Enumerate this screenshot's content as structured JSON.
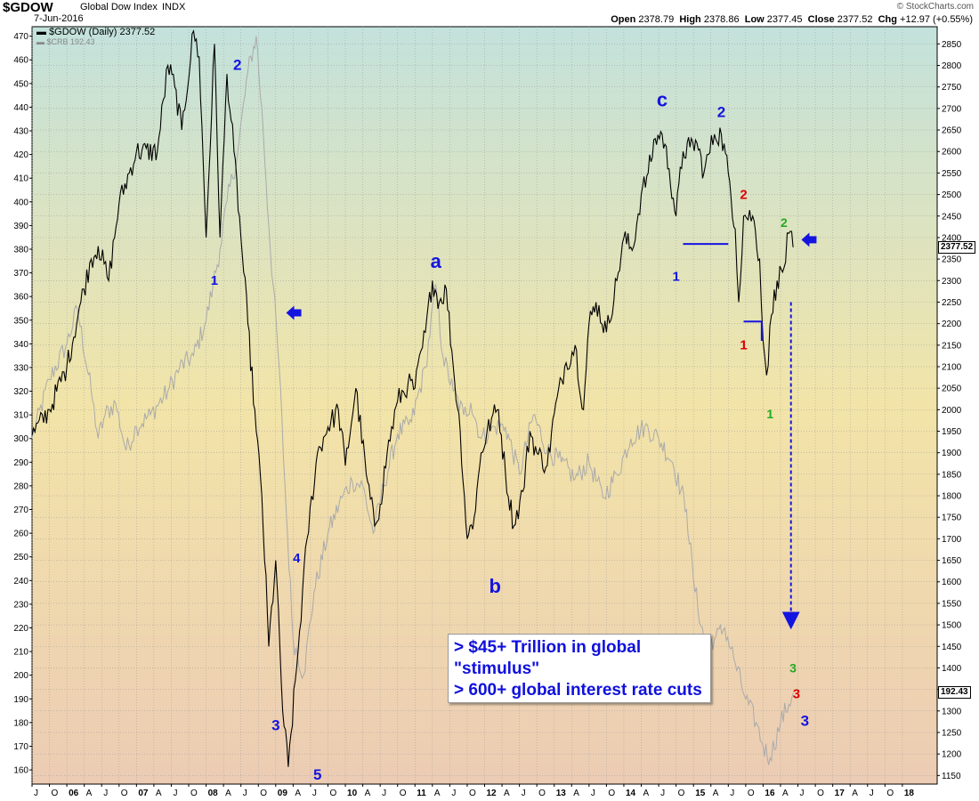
{
  "header": {
    "symbol": "$GDOW",
    "description": "Global Dow Index",
    "exchange": "INDX",
    "date": "7-Jun-2016",
    "logo": "© StockCharts.com",
    "open_label": "Open",
    "open": "2378.79",
    "high_label": "High",
    "high": "2378.86",
    "low_label": "Low",
    "low": "2377.45",
    "close_label": "Close",
    "close": "2377.52",
    "chg_label": "Chg",
    "chg": "+12.97 (+0.55%)"
  },
  "legend": {
    "main": "$GDOW (Daily) 2377.52",
    "overlay": "$CRB 192.43"
  },
  "tags": {
    "gdow_last": "2377.52",
    "crb_last": "192.43"
  },
  "note": {
    "line1": "> $45+ Trillion in global",
    "line2": "\"stimulus\"",
    "line3": "> 600+ global interest rate cuts"
  },
  "colors": {
    "main_series": "#000000",
    "overlay_series": "#aaaaaa",
    "annotation_blue": "#1414e0",
    "annotation_red": "#dd0000",
    "annotation_green": "#22aa22",
    "bg_top": "#c3e2dc",
    "bg_mid": "#f2e4a8",
    "bg_bottom": "#ecccb4"
  },
  "chart_data": {
    "type": "line",
    "title": "$GDOW Global Dow Index INDX",
    "x_ticks": [
      "J",
      "O",
      "06",
      "A",
      "J",
      "O",
      "07",
      "A",
      "J",
      "O",
      "08",
      "A",
      "J",
      "O",
      "09",
      "A",
      "J",
      "O",
      "10",
      "A",
      "J",
      "O",
      "11",
      "A",
      "J",
      "O",
      "12",
      "A",
      "J",
      "O",
      "13",
      "A",
      "J",
      "O",
      "14",
      "A",
      "J",
      "O",
      "15",
      "A",
      "J",
      "O",
      "16",
      "A",
      "J",
      "O",
      "17",
      "A",
      "J",
      "O",
      "18"
    ],
    "x_range": [
      2005.5,
      2018.5
    ],
    "right_axis": {
      "label": "$GDOW",
      "ylim": [
        1130,
        2890
      ],
      "ticks": [
        1150,
        1200,
        1250,
        1300,
        1350,
        1400,
        1450,
        1500,
        1550,
        1600,
        1650,
        1700,
        1750,
        1800,
        1850,
        1900,
        1950,
        2000,
        2050,
        2100,
        2150,
        2200,
        2250,
        2300,
        2350,
        2400,
        2450,
        2500,
        2550,
        2600,
        2650,
        2700,
        2750,
        2800,
        2850
      ]
    },
    "left_axis": {
      "label": "$CRB",
      "ylim": [
        154,
        474
      ],
      "ticks": [
        160,
        170,
        180,
        190,
        200,
        210,
        220,
        230,
        240,
        250,
        260,
        270,
        280,
        290,
        300,
        310,
        320,
        330,
        340,
        350,
        360,
        370,
        380,
        390,
        400,
        410,
        420,
        430,
        440,
        450,
        460,
        470
      ]
    },
    "grid": true,
    "series": [
      {
        "name": "$GDOW (Daily)",
        "axis": "right",
        "x": [
          2005.5,
          2005.75,
          2006.0,
          2006.2,
          2006.35,
          2006.45,
          2006.6,
          2006.75,
          2007.0,
          2007.3,
          2007.45,
          2007.55,
          2007.65,
          2007.82,
          2007.9,
          2008.0,
          2008.12,
          2008.2,
          2008.3,
          2008.4,
          2008.5,
          2008.6,
          2008.72,
          2008.8,
          2008.9,
          2009.0,
          2009.1,
          2009.18,
          2009.3,
          2009.45,
          2009.6,
          2009.75,
          2009.9,
          2010.0,
          2010.15,
          2010.3,
          2010.42,
          2010.5,
          2010.6,
          2010.75,
          2010.9,
          2011.0,
          2011.15,
          2011.25,
          2011.35,
          2011.45,
          2011.55,
          2011.65,
          2011.75,
          2011.85,
          2011.95,
          2012.1,
          2012.2,
          2012.3,
          2012.42,
          2012.55,
          2012.65,
          2012.75,
          2012.9,
          2013.0,
          2013.15,
          2013.3,
          2013.42,
          2013.5,
          2013.6,
          2013.75,
          2013.9,
          2014.0,
          2014.12,
          2014.25,
          2014.35,
          2014.45,
          2014.55,
          2014.65,
          2014.75,
          2014.85,
          2014.95,
          2015.05,
          2015.15,
          2015.3,
          2015.4,
          2015.5,
          2015.6,
          2015.65,
          2015.72,
          2015.85,
          2015.95,
          2016.0,
          2016.05,
          2016.12,
          2016.2,
          2016.3,
          2016.37,
          2016.43
        ],
        "y": [
          1940,
          2000,
          2100,
          2250,
          2350,
          2380,
          2300,
          2480,
          2600,
          2600,
          2800,
          2750,
          2650,
          2880,
          2820,
          2400,
          2850,
          2400,
          2780,
          2600,
          2400,
          2200,
          1950,
          1800,
          1450,
          1650,
          1300,
          1170,
          1400,
          1700,
          1900,
          1960,
          2000,
          1870,
          2050,
          1850,
          1730,
          1780,
          1900,
          2020,
          2060,
          2050,
          2180,
          2300,
          2250,
          2280,
          2100,
          1950,
          1700,
          1750,
          1900,
          1980,
          2000,
          1850,
          1730,
          1810,
          1950,
          1900,
          1870,
          1990,
          2100,
          2150,
          2000,
          2200,
          2250,
          2180,
          2300,
          2400,
          2370,
          2500,
          2550,
          2630,
          2640,
          2560,
          2450,
          2600,
          2610,
          2620,
          2550,
          2640,
          2640,
          2550,
          2420,
          2250,
          2450,
          2450,
          2350,
          2160,
          2080,
          2220,
          2300,
          2330,
          2410,
          2377.52
        ]
      },
      {
        "name": "$CRB",
        "axis": "left",
        "x": [
          2005.5,
          2005.75,
          2006.0,
          2006.15,
          2006.35,
          2006.45,
          2006.55,
          2006.7,
          2006.85,
          2007.0,
          2007.2,
          2007.45,
          2007.62,
          2007.82,
          2008.0,
          2008.1,
          2008.2,
          2008.3,
          2008.45,
          2008.6,
          2008.72,
          2008.82,
          2008.9,
          2009.05,
          2009.15,
          2009.25,
          2009.4,
          2009.55,
          2009.75,
          2009.95,
          2010.1,
          2010.25,
          2010.4,
          2010.55,
          2010.75,
          2010.95,
          2011.15,
          2011.3,
          2011.4,
          2011.55,
          2011.7,
          2011.8,
          2011.95,
          2012.15,
          2012.3,
          2012.5,
          2012.7,
          2012.9,
          2013.1,
          2013.3,
          2013.5,
          2013.7,
          2013.9,
          2014.1,
          2014.3,
          2014.5,
          2014.7,
          2014.9,
          2015.0,
          2015.15,
          2015.3,
          2015.45,
          2015.6,
          2015.75,
          2015.9,
          2016.0,
          2016.1,
          2016.25,
          2016.43
        ],
        "y": [
          300,
          325,
          340,
          355,
          320,
          300,
          310,
          315,
          295,
          305,
          310,
          320,
          330,
          335,
          350,
          365,
          380,
          400,
          420,
          455,
          470,
          430,
          390,
          330,
          270,
          215,
          200,
          235,
          260,
          275,
          282,
          280,
          260,
          280,
          302,
          307,
          330,
          365,
          335,
          320,
          310,
          315,
          300,
          305,
          305,
          285,
          310,
          295,
          290,
          283,
          290,
          275,
          285,
          300,
          305,
          300,
          290,
          270,
          240,
          215,
          215,
          220,
          205,
          190,
          180,
          170,
          165,
          180,
          192.43
        ]
      }
    ]
  },
  "annotations": [
    {
      "text": "2",
      "x": 2008.45,
      "y": 2790,
      "color": "annotation_blue",
      "size": 17
    },
    {
      "text": "1",
      "x": 2008.12,
      "y": 2290,
      "color": "annotation_blue",
      "size": 15
    },
    {
      "text": "3",
      "x": 2009.0,
      "y": 1255,
      "color": "annotation_blue",
      "size": 17
    },
    {
      "text": "4",
      "x": 2009.3,
      "y": 1645,
      "color": "annotation_blue",
      "size": 15
    },
    {
      "text": "5",
      "x": 2009.6,
      "y": 1140,
      "color": "annotation_blue",
      "size": 17
    },
    {
      "text": "a",
      "x": 2011.3,
      "y": 2330,
      "color": "annotation_blue",
      "size": 22
    },
    {
      "text": "b",
      "x": 2012.15,
      "y": 1575,
      "color": "annotation_blue",
      "size": 22
    },
    {
      "text": "c",
      "x": 2014.55,
      "y": 2705,
      "color": "annotation_blue",
      "size": 22
    },
    {
      "text": "2",
      "x": 2015.4,
      "y": 2680,
      "color": "annotation_blue",
      "size": 17
    },
    {
      "text": "1",
      "x": 2014.75,
      "y": 2300,
      "color": "annotation_blue",
      "size": 15
    },
    {
      "text": "2",
      "x": 2015.72,
      "y": 2490,
      "color": "annotation_red",
      "size": 15
    },
    {
      "text": "1",
      "x": 2015.72,
      "y": 2140,
      "color": "annotation_red",
      "size": 15
    },
    {
      "text": "2",
      "x": 2016.3,
      "y": 2425,
      "color": "annotation_green",
      "size": 14
    },
    {
      "text": "1",
      "x": 2016.1,
      "y": 1980,
      "color": "annotation_green",
      "size": 14
    },
    {
      "text": "3",
      "x": 2016.43,
      "y": 1390,
      "color": "annotation_green",
      "size": 14
    },
    {
      "text": "3",
      "x": 2016.48,
      "y": 1330,
      "color": "annotation_red",
      "size": 15
    },
    {
      "text": "3",
      "x": 2016.6,
      "y": 1265,
      "color": "annotation_blue",
      "size": 17
    }
  ]
}
